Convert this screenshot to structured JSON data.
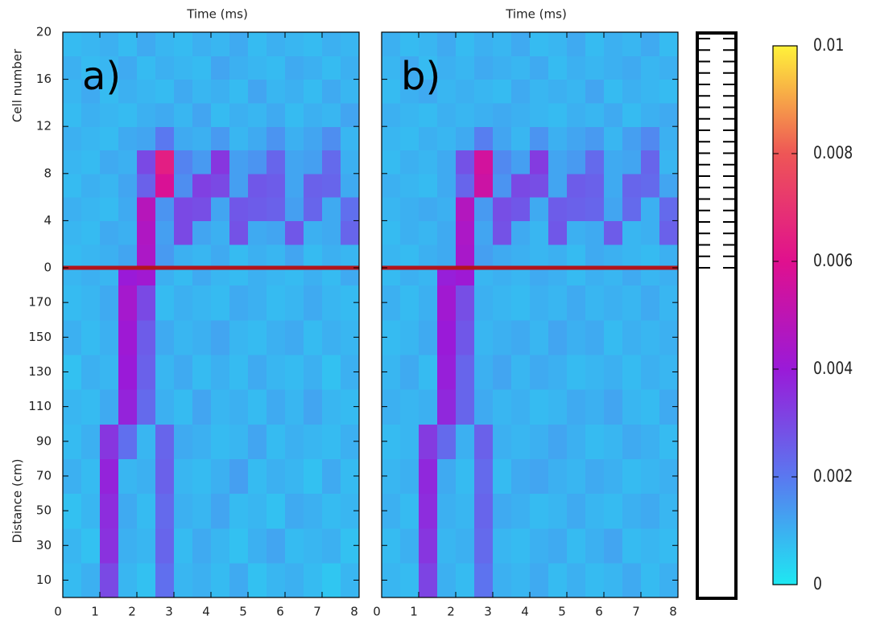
{
  "chart_data": {
    "type": "heatmap",
    "x_label": "Time (ms)",
    "xlim": [
      0,
      8
    ],
    "xticks": [
      0,
      1,
      2,
      3,
      4,
      5,
      6,
      7,
      8
    ],
    "x_bins": [
      0,
      0.5,
      1,
      1.5,
      2,
      2.5,
      3,
      3.5,
      4,
      4.5,
      5,
      5.5,
      6,
      6.5,
      7,
      7.5,
      8
    ],
    "y_sections": [
      {
        "label": "Distance (cm)",
        "ylim": [
          0,
          190
        ],
        "yticks": [
          10,
          30,
          50,
          70,
          90,
          110,
          130,
          150,
          170
        ],
        "y_bins": [
          0,
          20,
          40,
          60,
          80,
          100,
          120,
          140,
          160,
          180,
          190
        ]
      },
      {
        "label": "Cell number",
        "ylim": [
          0,
          20
        ],
        "yticks": [
          0,
          4,
          8,
          12,
          16,
          20
        ],
        "y_bins": [
          0,
          2,
          4,
          6,
          8,
          10,
          12,
          14,
          16,
          18,
          20
        ]
      }
    ],
    "boundary_color": "#b3141b",
    "panels": [
      {
        "label": "a)",
        "z": [
          [
            [
              0.0008,
              0.001,
              0.003,
              0.0009,
              0.0007,
              0.0022,
              0.0009,
              0.001,
              0.0008,
              0.0011,
              0.0007,
              0.0009,
              0.001,
              0.0008,
              0.0006,
              0.0009
            ],
            [
              0.0009,
              0.0007,
              0.0035,
              0.001,
              0.0009,
              0.0024,
              0.0008,
              0.0011,
              0.0009,
              0.0007,
              0.001,
              0.0012,
              0.0008,
              0.0009,
              0.001,
              0.0007
            ],
            [
              0.0007,
              0.0009,
              0.0036,
              0.0011,
              0.0008,
              0.0023,
              0.001,
              0.0009,
              0.0012,
              0.0008,
              0.0009,
              0.0007,
              0.0011,
              0.001,
              0.0008,
              0.0009
            ],
            [
              0.001,
              0.0008,
              0.0038,
              0.0009,
              0.001,
              0.0025,
              0.0009,
              0.0008,
              0.001,
              0.0013,
              0.0008,
              0.001,
              0.0009,
              0.0007,
              0.0011,
              0.0008
            ],
            [
              0.0008,
              0.001,
              0.0034,
              0.0022,
              0.0009,
              0.0024,
              0.0011,
              0.001,
              0.0008,
              0.0009,
              0.0012,
              0.0008,
              0.001,
              0.0009,
              0.0008,
              0.001
            ],
            [
              0.0009,
              0.0008,
              0.0011,
              0.0038,
              0.0023,
              0.001,
              0.0008,
              0.0012,
              0.0009,
              0.001,
              0.0008,
              0.0011,
              0.0009,
              0.0012,
              0.0009,
              0.0008
            ],
            [
              0.0007,
              0.001,
              0.0009,
              0.004,
              0.0025,
              0.0009,
              0.0011,
              0.0008,
              0.001,
              0.0008,
              0.0011,
              0.0009,
              0.0008,
              0.001,
              0.0007,
              0.001
            ],
            [
              0.001,
              0.0008,
              0.001,
              0.0041,
              0.0026,
              0.0011,
              0.0009,
              0.001,
              0.0012,
              0.0009,
              0.0008,
              0.001,
              0.0011,
              0.0008,
              0.001,
              0.0009
            ],
            [
              0.0008,
              0.0009,
              0.0011,
              0.0043,
              0.003,
              0.0008,
              0.001,
              0.0009,
              0.0008,
              0.0011,
              0.001,
              0.0008,
              0.0009,
              0.0011,
              0.0009,
              0.0008
            ],
            [
              0.0009,
              0.001,
              0.0009,
              0.004,
              0.0042,
              0.001,
              0.0008,
              0.0011,
              0.0009,
              0.0008,
              0.001,
              0.0009,
              0.0008,
              0.001,
              0.0008,
              0.0011
            ]
          ],
          [
            [
              0.0008,
              0.0009,
              0.001,
              0.0012,
              0.0045,
              0.0014,
              0.001,
              0.0009,
              0.0011,
              0.0008,
              0.001,
              0.0009,
              0.0012,
              0.0008,
              0.001,
              0.0009
            ],
            [
              0.0009,
              0.0008,
              0.0011,
              0.001,
              0.0046,
              0.0013,
              0.003,
              0.0012,
              0.001,
              0.0028,
              0.0011,
              0.0012,
              0.0027,
              0.001,
              0.0011,
              0.0024
            ],
            [
              0.001,
              0.0009,
              0.0008,
              0.0011,
              0.0048,
              0.0015,
              0.003,
              0.0029,
              0.0012,
              0.0027,
              0.0026,
              0.0025,
              0.0013,
              0.0024,
              0.0011,
              0.0022
            ],
            [
              0.0008,
              0.001,
              0.0009,
              0.0012,
              0.0025,
              0.0058,
              0.0016,
              0.0032,
              0.003,
              0.0013,
              0.0027,
              0.0026,
              0.0012,
              0.0025,
              0.0024,
              0.0011
            ],
            [
              0.0009,
              0.0008,
              0.0011,
              0.001,
              0.003,
              0.0064,
              0.0018,
              0.0014,
              0.0034,
              0.0013,
              0.0015,
              0.0024,
              0.0012,
              0.0013,
              0.0023,
              0.001
            ],
            [
              0.001,
              0.0009,
              0.0008,
              0.0011,
              0.0012,
              0.002,
              0.0011,
              0.001,
              0.0014,
              0.0009,
              0.0011,
              0.0015,
              0.001,
              0.0012,
              0.0016,
              0.0009
            ],
            [
              0.0008,
              0.001,
              0.0009,
              0.0008,
              0.001,
              0.0011,
              0.0009,
              0.0012,
              0.0008,
              0.001,
              0.0009,
              0.0011,
              0.0008,
              0.001,
              0.0009,
              0.0012
            ],
            [
              0.0009,
              0.0011,
              0.0008,
              0.001,
              0.0009,
              0.0008,
              0.0011,
              0.0009,
              0.001,
              0.0008,
              0.0012,
              0.0009,
              0.001,
              0.0008,
              0.0011,
              0.0009
            ],
            [
              0.001,
              0.0008,
              0.0009,
              0.0011,
              0.0008,
              0.001,
              0.0009,
              0.0008,
              0.0012,
              0.001,
              0.0009,
              0.0008,
              0.0011,
              0.001,
              0.0008,
              0.001
            ],
            [
              0.0008,
              0.0009,
              0.001,
              0.0008,
              0.0011,
              0.0009,
              0.0008,
              0.001,
              0.0009,
              0.0011,
              0.0008,
              0.001,
              0.0009,
              0.0008,
              0.001,
              0.0009
            ]
          ]
        ]
      },
      {
        "label": "b)",
        "z": [
          [
            [
              0.0009,
              0.0008,
              0.0031,
              0.001,
              0.0008,
              0.0021,
              0.001,
              0.0009,
              0.0011,
              0.0008,
              0.001,
              0.0008,
              0.0009,
              0.0011,
              0.0008,
              0.001
            ],
            [
              0.0008,
              0.001,
              0.0034,
              0.0009,
              0.001,
              0.0023,
              0.0009,
              0.0008,
              0.001,
              0.0011,
              0.0008,
              0.001,
              0.0012,
              0.0008,
              0.0009,
              0.0008
            ],
            [
              0.001,
              0.0008,
              0.0036,
              0.001,
              0.0009,
              0.0024,
              0.0011,
              0.001,
              0.0008,
              0.0009,
              0.0011,
              0.0009,
              0.0008,
              0.001,
              0.0011,
              0.0009
            ],
            [
              0.0009,
              0.001,
              0.0037,
              0.0011,
              0.0008,
              0.0023,
              0.0008,
              0.0011,
              0.0012,
              0.001,
              0.0009,
              0.0011,
              0.001,
              0.0008,
              0.0009,
              0.001
            ],
            [
              0.0008,
              0.0009,
              0.0033,
              0.0023,
              0.001,
              0.0025,
              0.001,
              0.0009,
              0.001,
              0.0012,
              0.001,
              0.0008,
              0.0009,
              0.0011,
              0.001,
              0.0008
            ],
            [
              0.001,
              0.0009,
              0.001,
              0.0037,
              0.0024,
              0.0011,
              0.0009,
              0.001,
              0.0008,
              0.0009,
              0.0011,
              0.001,
              0.0012,
              0.0009,
              0.0008,
              0.0011
            ],
            [
              0.0009,
              0.0011,
              0.0008,
              0.0039,
              0.0024,
              0.001,
              0.0012,
              0.0009,
              0.0011,
              0.001,
              0.0008,
              0.0009,
              0.001,
              0.0008,
              0.001,
              0.0009
            ],
            [
              0.0008,
              0.0009,
              0.0011,
              0.004,
              0.0027,
              0.0009,
              0.001,
              0.0011,
              0.0009,
              0.0012,
              0.001,
              0.0011,
              0.0008,
              0.001,
              0.0009,
              0.001
            ],
            [
              0.001,
              0.0008,
              0.001,
              0.0042,
              0.0029,
              0.001,
              0.0009,
              0.0008,
              0.001,
              0.0009,
              0.0011,
              0.0009,
              0.001,
              0.0009,
              0.0011,
              0.0009
            ],
            [
              0.0008,
              0.001,
              0.0009,
              0.0039,
              0.0041,
              0.0009,
              0.001,
              0.0009,
              0.0011,
              0.001,
              0.0008,
              0.001,
              0.0009,
              0.0011,
              0.0009,
              0.001
            ]
          ],
          [
            [
              0.0009,
              0.0008,
              0.001,
              0.0011,
              0.0044,
              0.0013,
              0.0011,
              0.001,
              0.0009,
              0.001,
              0.0008,
              0.0011,
              0.001,
              0.0009,
              0.0008,
              0.001
            ],
            [
              0.0008,
              0.001,
              0.0009,
              0.0011,
              0.0045,
              0.0012,
              0.0028,
              0.0011,
              0.0009,
              0.0027,
              0.001,
              0.0011,
              0.0026,
              0.0009,
              0.001,
              0.0025
            ],
            [
              0.0009,
              0.001,
              0.0011,
              0.001,
              0.0047,
              0.0014,
              0.0029,
              0.0027,
              0.0011,
              0.0026,
              0.0025,
              0.0024,
              0.0012,
              0.0023,
              0.001,
              0.0023
            ],
            [
              0.001,
              0.0009,
              0.0008,
              0.0011,
              0.0024,
              0.0054,
              0.0015,
              0.003,
              0.0029,
              0.0012,
              0.0026,
              0.0025,
              0.0011,
              0.0024,
              0.0023,
              0.0012
            ],
            [
              0.0008,
              0.001,
              0.0009,
              0.0011,
              0.0028,
              0.0056,
              0.0017,
              0.0013,
              0.0033,
              0.0012,
              0.0014,
              0.0023,
              0.0011,
              0.0012,
              0.0024,
              0.0009
            ],
            [
              0.0009,
              0.0008,
              0.001,
              0.0009,
              0.0011,
              0.0019,
              0.0012,
              0.0009,
              0.0015,
              0.001,
              0.0012,
              0.0014,
              0.0009,
              0.0013,
              0.0017,
              0.001
            ],
            [
              0.001,
              0.0009,
              0.0008,
              0.001,
              0.0009,
              0.001,
              0.0011,
              0.001,
              0.0009,
              0.0008,
              0.001,
              0.0009,
              0.0011,
              0.0008,
              0.001,
              0.0011
            ],
            [
              0.0008,
              0.001,
              0.0011,
              0.0009,
              0.001,
              0.0009,
              0.0008,
              0.0011,
              0.0009,
              0.001,
              0.0009,
              0.0012,
              0.0008,
              0.001,
              0.0009,
              0.0008
            ],
            [
              0.0009,
              0.0011,
              0.0008,
              0.001,
              0.0009,
              0.0011,
              0.001,
              0.0009,
              0.0011,
              0.0008,
              0.001,
              0.0009,
              0.001,
              0.0011,
              0.0009,
              0.001
            ],
            [
              0.001,
              0.0008,
              0.0009,
              0.0011,
              0.0008,
              0.001,
              0.0009,
              0.0011,
              0.0008,
              0.0009,
              0.0011,
              0.0008,
              0.001,
              0.0009,
              0.0011,
              0.0008
            ]
          ]
        ]
      }
    ],
    "colorbar": {
      "zlim": [
        0,
        0.01
      ],
      "zticks": [
        0,
        0.002,
        0.004,
        0.006,
        0.008,
        0.01
      ],
      "colors": [
        "#1ee8f2",
        "#5a78f0",
        "#9a1ad8",
        "#e0108e",
        "#ee5656",
        "#fff23a"
      ]
    }
  }
}
